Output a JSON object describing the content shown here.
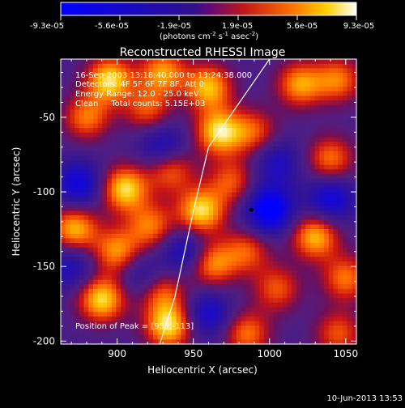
{
  "colorbar": {
    "ticks": [
      "-9.3e-05",
      "-5.6e-05",
      "-1.9e-05",
      "1.9e-05",
      "5.6e-05",
      "9.3e-05"
    ],
    "units_main": "(photons cm",
    "units_exp1": "-2",
    "units_mid": " s",
    "units_exp2": "-1",
    "units_tail": " asec",
    "units_exp3": "-2",
    "units_close": ")",
    "range": [
      -9.3e-05,
      9.3e-05
    ]
  },
  "overlay": {
    "time_range": "16-Sep-2003 13:18:40.000 to 13:24:38.000",
    "detectors": "Detectors: 4F 5F 6F 7F 8F, Att 0",
    "energy": "Energy Range: 12.0 - 25.0 keV",
    "clean": "Clean     Total counts: 5.15E+03",
    "peak": "Position of Peak = [959,-113]"
  },
  "footer": {
    "timestamp": "10-Jun-2013 13:53"
  },
  "chart_data": {
    "type": "heatmap",
    "title": "Reconstructed RHESSI Image",
    "xlabel": "Heliocentric X (arcsec)",
    "ylabel": "Heliocentric Y (arcsec)",
    "xlim": [
      863,
      1057
    ],
    "ylim": [
      -202,
      -11
    ],
    "xticks": [
      900,
      950,
      1000,
      1050
    ],
    "yticks": [
      -50,
      -100,
      -150,
      -200
    ],
    "limb": [
      [
        1000,
        -11
      ],
      [
        960,
        -70
      ],
      [
        950,
        -113
      ],
      [
        938,
        -170
      ],
      [
        928,
        -202
      ]
    ],
    "peak": [
      959,
      -113
    ],
    "blobs": [
      {
        "x": 895,
        "y": -25,
        "v": 1.0
      },
      {
        "x": 930,
        "y": -20,
        "v": 0.8
      },
      {
        "x": 960,
        "y": -30,
        "v": 0.9
      },
      {
        "x": 880,
        "y": -50,
        "v": 0.7
      },
      {
        "x": 920,
        "y": -45,
        "v": 0.6
      },
      {
        "x": 967,
        "y": -60,
        "v": 1.0
      },
      {
        "x": 905,
        "y": -98,
        "v": 1.0
      },
      {
        "x": 935,
        "y": -85,
        "v": 0.7
      },
      {
        "x": 872,
        "y": -125,
        "v": 0.9
      },
      {
        "x": 900,
        "y": -140,
        "v": 0.8
      },
      {
        "x": 922,
        "y": -123,
        "v": 0.7
      },
      {
        "x": 955,
        "y": -113,
        "v": 1.0
      },
      {
        "x": 975,
        "y": -93,
        "v": 0.6
      },
      {
        "x": 962,
        "y": -148,
        "v": 0.8
      },
      {
        "x": 985,
        "y": -140,
        "v": 0.6
      },
      {
        "x": 1020,
        "y": -28,
        "v": 0.8
      },
      {
        "x": 1045,
        "y": -25,
        "v": 0.7
      },
      {
        "x": 1040,
        "y": -78,
        "v": 0.7
      },
      {
        "x": 1030,
        "y": -130,
        "v": 0.9
      },
      {
        "x": 1050,
        "y": -158,
        "v": 0.7
      },
      {
        "x": 1005,
        "y": -165,
        "v": 0.6
      },
      {
        "x": 890,
        "y": -172,
        "v": 1.0
      },
      {
        "x": 930,
        "y": -168,
        "v": 0.6
      },
      {
        "x": 934,
        "y": -190,
        "v": 1.0
      },
      {
        "x": 985,
        "y": -195,
        "v": 0.7
      },
      {
        "x": 1045,
        "y": -195,
        "v": 0.6
      },
      {
        "x": 990,
        "y": -60,
        "v": 0.6
      },
      {
        "x": 875,
        "y": -95,
        "v": -0.7
      },
      {
        "x": 930,
        "y": -70,
        "v": -0.6
      },
      {
        "x": 1000,
        "y": -112,
        "v": -1.0
      },
      {
        "x": 1040,
        "y": -105,
        "v": -0.7
      },
      {
        "x": 945,
        "y": -140,
        "v": -0.6
      },
      {
        "x": 870,
        "y": -150,
        "v": -0.5
      },
      {
        "x": 960,
        "y": -182,
        "v": -0.6
      },
      {
        "x": 1005,
        "y": -80,
        "v": -0.5
      },
      {
        "x": 915,
        "y": -155,
        "v": -0.4
      }
    ]
  }
}
